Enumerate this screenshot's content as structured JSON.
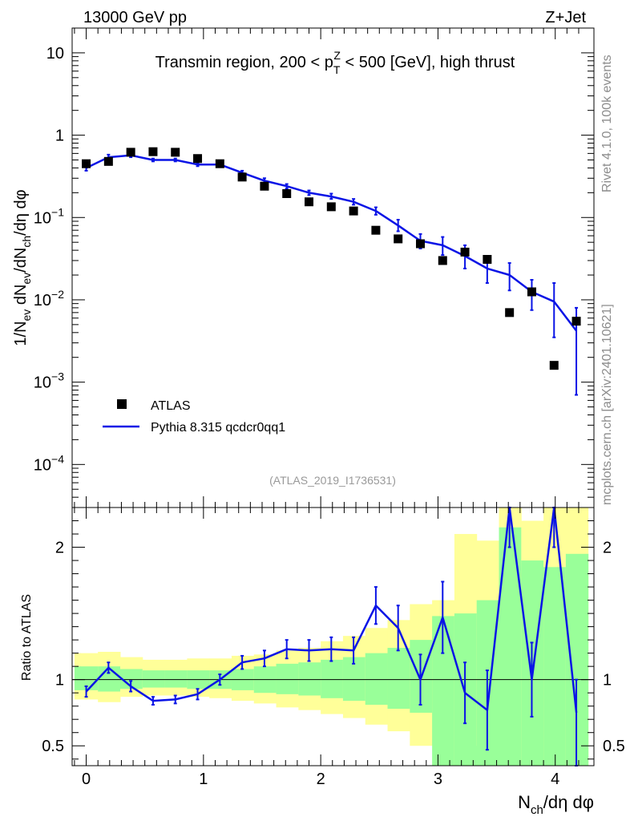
{
  "header": {
    "left": "13000 GeV pp",
    "right": "Z+Jet"
  },
  "side": {
    "top": "Rivet 4.1.0,  100k events",
    "bottom": "mcplots.cern.ch [arXiv:2401.10621]"
  },
  "colors": {
    "data": "#000000",
    "mc": "#0a14e6",
    "band_inner": "#99ff99",
    "band_outer": "#ffff99"
  },
  "chart_data": [
    {
      "type": "scatter",
      "panel": "main",
      "title": "Transmin region, 200 < p_T^Z < 500 [GeV], high thrust",
      "title_parts": {
        "pre": "Transmin region, 200 < p",
        "sub": "T",
        "sup": "Z",
        "post": " < 500 [GeV], high thrust"
      },
      "ylabel": "1/N_ev dN_ev/dN_ch/dη dφ",
      "ylabel_parts": {
        "a": "1/N",
        "a_sub": "ev",
        "b": " dN",
        "b_sub": "ev",
        "c": "/dN",
        "c_sub": "ch",
        "d": "/dη dφ"
      },
      "yscale": "log",
      "ylim": [
        3e-05,
        20
      ],
      "xlim": [
        -0.12,
        4.33
      ],
      "y_ticks": [
        {
          "v": 10,
          "b": "10",
          "e": ""
        },
        {
          "v": 1,
          "b": "1",
          "e": ""
        },
        {
          "v": 0.1,
          "b": "10",
          "e": "−1"
        },
        {
          "v": 0.01,
          "b": "10",
          "e": "−2"
        },
        {
          "v": 0.001,
          "b": "10",
          "e": "−3"
        },
        {
          "v": 0.0001,
          "b": "10",
          "e": "−4"
        }
      ],
      "watermark": "(ATLAS_2019_I1736531)",
      "legend": {
        "position": "bottom-left",
        "entries": [
          {
            "label": "ATLAS",
            "marker": "square"
          },
          {
            "label": "Pythia 8.315 qcdcr0qq1",
            "marker": "line"
          }
        ]
      },
      "series": [
        {
          "name": "ATLAS",
          "x": [
            0.0,
            0.19,
            0.38,
            0.57,
            0.76,
            0.95,
            1.14,
            1.33,
            1.52,
            1.71,
            1.9,
            2.09,
            2.28,
            2.47,
            2.66,
            2.85,
            3.04,
            3.23,
            3.42,
            3.61,
            3.8,
            3.99,
            4.18
          ],
          "values": [
            0.45,
            0.48,
            0.62,
            0.63,
            0.62,
            0.52,
            0.45,
            0.31,
            0.24,
            0.195,
            0.155,
            0.135,
            0.12,
            0.07,
            0.055,
            0.048,
            0.03,
            0.038,
            0.031,
            0.007,
            0.0125,
            0.0016,
            0.0055
          ]
        },
        {
          "name": "Pythia 8.315 qcdcr0qq1",
          "x": [
            0.0,
            0.19,
            0.38,
            0.57,
            0.76,
            0.95,
            1.14,
            1.33,
            1.52,
            1.71,
            1.9,
            2.09,
            2.28,
            2.47,
            2.66,
            2.85,
            3.04,
            3.23,
            3.42,
            3.61,
            3.8,
            3.99,
            4.18
          ],
          "values": [
            0.4,
            0.54,
            0.57,
            0.5,
            0.5,
            0.44,
            0.44,
            0.35,
            0.28,
            0.24,
            0.2,
            0.18,
            0.155,
            0.12,
            0.08,
            0.052,
            0.046,
            0.034,
            0.024,
            0.02,
            0.0125,
            0.0095,
            0.0042
          ],
          "err_low": [
            0.37,
            0.5,
            0.54,
            0.48,
            0.48,
            0.42,
            0.42,
            0.33,
            0.265,
            0.225,
            0.187,
            0.168,
            0.143,
            0.108,
            0.068,
            0.042,
            0.035,
            0.024,
            0.016,
            0.013,
            0.0075,
            0.0035,
            0.0007
          ],
          "err_high": [
            0.43,
            0.58,
            0.6,
            0.52,
            0.52,
            0.46,
            0.46,
            0.37,
            0.3,
            0.255,
            0.213,
            0.195,
            0.168,
            0.133,
            0.094,
            0.063,
            0.058,
            0.046,
            0.033,
            0.028,
            0.0175,
            0.016,
            0.008
          ]
        }
      ]
    },
    {
      "type": "line",
      "panel": "ratio",
      "ylabel": "Ratio to ATLAS",
      "xlabel": "N_ch/dη dφ",
      "xlabel_parts": {
        "a": "N",
        "a_sub": "ch",
        "b": "/dη dφ"
      },
      "ylim": [
        0.35,
        2.3
      ],
      "xlim": [
        -0.12,
        4.33
      ],
      "reference_line": 1,
      "y_ticks": [
        0.5,
        1,
        2
      ],
      "y_tick_labels": [
        "0.5",
        "1",
        "2"
      ],
      "x_ticks": [
        0,
        1,
        2,
        3,
        4
      ],
      "x_tick_labels": [
        "0",
        "1",
        "2",
        "3",
        "4"
      ],
      "bands": {
        "edges": [
          -0.1,
          0.1,
          0.29,
          0.48,
          0.67,
          0.86,
          1.05,
          1.24,
          1.43,
          1.62,
          1.81,
          2.0,
          2.19,
          2.38,
          2.57,
          2.76,
          2.95,
          3.14,
          3.33,
          3.52,
          3.71,
          3.9,
          4.09,
          4.28
        ],
        "outer_low": [
          0.85,
          0.83,
          0.87,
          0.88,
          0.88,
          0.87,
          0.86,
          0.84,
          0.82,
          0.79,
          0.77,
          0.74,
          0.71,
          0.66,
          0.61,
          0.5,
          0.55,
          0.35,
          0.5,
          0.35,
          0.35,
          0.35,
          0.35
        ],
        "outer_high": [
          1.2,
          1.21,
          1.17,
          1.15,
          1.15,
          1.16,
          1.16,
          1.18,
          1.19,
          1.22,
          1.24,
          1.29,
          1.33,
          1.39,
          1.45,
          1.57,
          1.6,
          2.1,
          2.05,
          2.3,
          2.2,
          2.3,
          2.3
        ],
        "inner_low": [
          0.92,
          0.91,
          0.93,
          0.94,
          0.94,
          0.93,
          0.93,
          0.92,
          0.9,
          0.89,
          0.88,
          0.86,
          0.84,
          0.81,
          0.78,
          0.75,
          0.35,
          0.35,
          0.35,
          0.35,
          0.35,
          0.35,
          0.35
        ],
        "inner_high": [
          1.1,
          1.1,
          1.08,
          1.07,
          1.07,
          1.07,
          1.07,
          1.08,
          1.1,
          1.12,
          1.13,
          1.15,
          1.17,
          1.2,
          1.24,
          1.3,
          1.48,
          1.5,
          1.6,
          2.15,
          1.9,
          1.85,
          1.95
        ]
      },
      "series": [
        {
          "name": "Pythia 8.315 qcdcr0qq1 / ATLAS",
          "x": [
            0.0,
            0.19,
            0.38,
            0.57,
            0.76,
            0.95,
            1.14,
            1.33,
            1.52,
            1.71,
            1.9,
            2.09,
            2.28,
            2.47,
            2.66,
            2.85,
            3.04,
            3.23,
            3.42,
            3.61,
            3.8,
            3.99,
            4.18
          ],
          "values": [
            0.91,
            1.09,
            0.95,
            0.84,
            0.85,
            0.89,
            1.0,
            1.13,
            1.16,
            1.23,
            1.22,
            1.23,
            1.22,
            1.56,
            1.39,
            1.0,
            1.47,
            0.9,
            0.77,
            2.3,
            1.0,
            2.3,
            0.75
          ],
          "err_low": [
            0.87,
            1.05,
            0.91,
            0.81,
            0.82,
            0.85,
            0.96,
            1.08,
            1.1,
            1.16,
            1.14,
            1.14,
            1.12,
            1.42,
            1.22,
            0.81,
            1.2,
            0.67,
            0.47,
            2.0,
            0.72,
            2.0,
            0.35
          ],
          "err_high": [
            0.95,
            1.13,
            0.99,
            0.87,
            0.88,
            0.93,
            1.04,
            1.18,
            1.22,
            1.3,
            1.3,
            1.32,
            1.32,
            1.7,
            1.56,
            1.19,
            1.74,
            1.13,
            1.07,
            2.3,
            1.28,
            2.3,
            1.0
          ]
        }
      ]
    }
  ]
}
